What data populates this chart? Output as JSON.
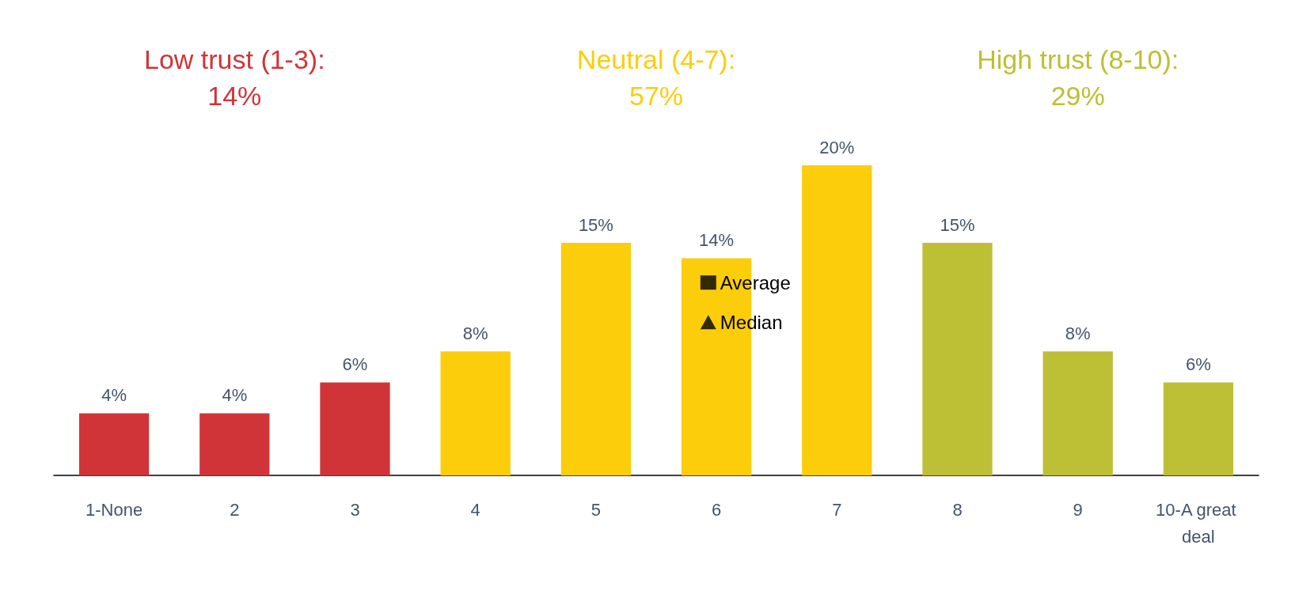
{
  "chart_data": {
    "type": "bar",
    "categories": [
      "1-None",
      "2",
      "3",
      "4",
      "5",
      "6",
      "7",
      "8",
      "9",
      "10-A great deal"
    ],
    "series": [
      {
        "values": [
          4,
          4,
          6,
          8,
          15,
          14,
          20,
          15,
          8,
          6
        ],
        "value_labels": [
          "4%",
          "4%",
          "6%",
          "8%",
          "15%",
          "14%",
          "20%",
          "15%",
          "8%",
          "6%"
        ],
        "colors": [
          "#d13438",
          "#d13438",
          "#d13438",
          "#fccd0a",
          "#fccd0a",
          "#fccd0a",
          "#fccd0a",
          "#bdbf35",
          "#bdbf35",
          "#bdbf35"
        ]
      },
      {
        "type": "scatter",
        "name": "Average",
        "color": "#000000",
        "marker": "square",
        "values": [
          null,
          null,
          null,
          null,
          null,
          null,
          null,
          null,
          null,
          null
        ]
      },
      {
        "type": "scatter",
        "name": "Median",
        "color": "#000000",
        "marker": "triangle",
        "values": [
          null,
          null,
          null,
          null,
          null,
          null,
          null,
          null,
          null,
          null
        ]
      }
    ],
    "legend": "center",
    "grid": false,
    "annotations": [
      "Low trust (1-3):\n14%",
      "Neutral (4-7):\n57%",
      "High trust (8-10):\n29%"
    ]
  }
}
